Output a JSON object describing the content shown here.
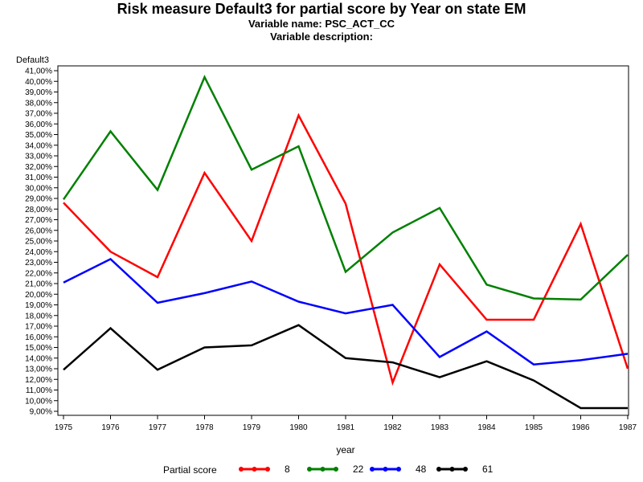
{
  "chart_data": {
    "type": "line",
    "title": "Risk measure Default3 for partial score by Year on state EM",
    "subtitles": [
      "Variable name: PSC_ACT_CC",
      "Variable description:"
    ],
    "ylabel": "Default3",
    "xlabel": "year",
    "x": [
      1975,
      1976,
      1977,
      1978,
      1979,
      1980,
      1981,
      1982,
      1983,
      1984,
      1985,
      1986,
      1987
    ],
    "ylim": [
      9,
      41
    ],
    "ytick_step": 1,
    "y_ticks_labels": [
      "9,00%",
      "10,00%",
      "11,00%",
      "12,00%",
      "13,00%",
      "14,00%",
      "15,00%",
      "16,00%",
      "17,00%",
      "18,00%",
      "19,00%",
      "20,00%",
      "21,00%",
      "22,00%",
      "23,00%",
      "24,00%",
      "25,00%",
      "26,00%",
      "27,00%",
      "28,00%",
      "29,00%",
      "30,00%",
      "31,00%",
      "32,00%",
      "33,00%",
      "34,00%",
      "35,00%",
      "36,00%",
      "37,00%",
      "38,00%",
      "39,00%",
      "40,00%",
      "41,00%"
    ],
    "grid": false,
    "legend_title": "Partial score",
    "legend_position": "bottom",
    "series": [
      {
        "name": "8",
        "color": "#ff0000",
        "values": [
          28.6,
          24.0,
          21.6,
          31.4,
          25.0,
          36.8,
          28.5,
          11.7,
          22.8,
          17.6,
          17.6,
          26.6,
          13.0
        ]
      },
      {
        "name": "22",
        "color": "#008000",
        "values": [
          28.9,
          35.3,
          29.8,
          40.4,
          31.7,
          33.9,
          22.1,
          25.8,
          28.1,
          20.9,
          19.6,
          19.5,
          23.7
        ]
      },
      {
        "name": "48",
        "color": "#0000ff",
        "values": [
          21.1,
          23.3,
          19.2,
          20.1,
          21.2,
          19.3,
          18.2,
          19.0,
          14.1,
          16.5,
          13.4,
          13.8,
          14.4
        ]
      },
      {
        "name": "61",
        "color": "#000000",
        "values": [
          12.9,
          16.8,
          12.9,
          15.0,
          15.2,
          17.1,
          14.0,
          13.6,
          12.2,
          13.7,
          11.9,
          9.3,
          9.3
        ]
      }
    ]
  }
}
